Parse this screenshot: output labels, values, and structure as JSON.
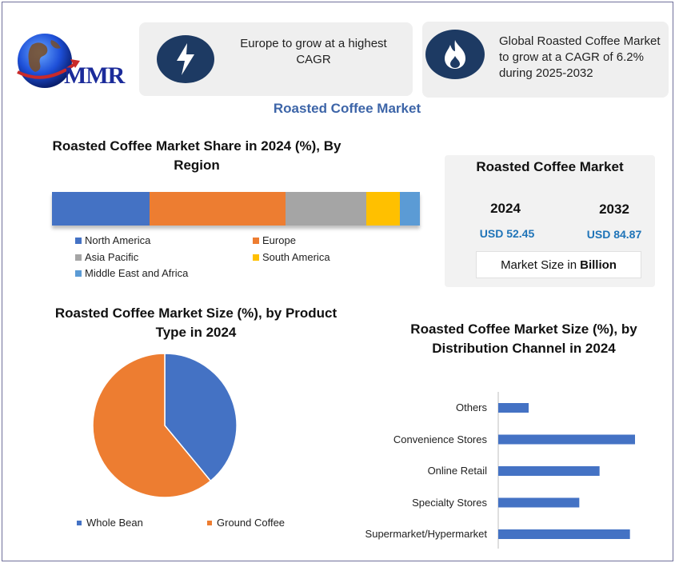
{
  "brand": {
    "logo_text": "MMR"
  },
  "info_boxes": [
    {
      "icon": "lightning-bolt-icon",
      "text": "Europe to grow at a highest CAGR"
    },
    {
      "icon": "flame-icon",
      "text": "Global Roasted Coffee Market to grow at a CAGR of 6.2% during 2025-2032"
    }
  ],
  "main_title": "Roasted Coffee Market",
  "market_box": {
    "title": "Roasted Coffee Market",
    "year1": "2024",
    "value1": "USD 52.45",
    "year2": "2032",
    "value2": "USD 84.87",
    "unit_prefix": "Market Size in",
    "unit_bold": "Billion"
  },
  "colors": {
    "blue": "#4472c4",
    "orange": "#ed7d31",
    "gray": "#a5a5a5",
    "yellow": "#ffc000",
    "lightblue": "#5b9bd5",
    "accent": "#3d65a8"
  },
  "chart_data": [
    {
      "type": "bar",
      "orientation": "stacked-horizontal",
      "title": "Roasted Coffee Market Share in 2024 (%), By Region",
      "series": [
        {
          "name": "North America",
          "value": 26.5
        },
        {
          "name": "Europe",
          "value": 37
        },
        {
          "name": "Asia Pacific",
          "value": 22
        },
        {
          "name": "South America",
          "value": 9
        },
        {
          "name": "Middle East and Africa",
          "value": 5.5
        }
      ],
      "legend": "bottom"
    },
    {
      "type": "pie",
      "title": "Roasted Coffee Market Size (%), by Product Type in 2024",
      "slices": [
        {
          "name": "Whole Bean",
          "value": 39
        },
        {
          "name": "Ground Coffee",
          "value": 61
        }
      ],
      "legend": "bottom"
    },
    {
      "type": "bar",
      "orientation": "horizontal",
      "title": "Roasted Coffee Market Size (%), by Distribution Channel in 2024",
      "categories": [
        "Others",
        "Convenience Stores",
        "Online Retail",
        "Specialty Stores",
        "Supermarket/Hypermarket"
      ],
      "values": [
        6,
        27,
        20,
        16,
        26
      ],
      "xlim": [
        0,
        30
      ]
    }
  ]
}
